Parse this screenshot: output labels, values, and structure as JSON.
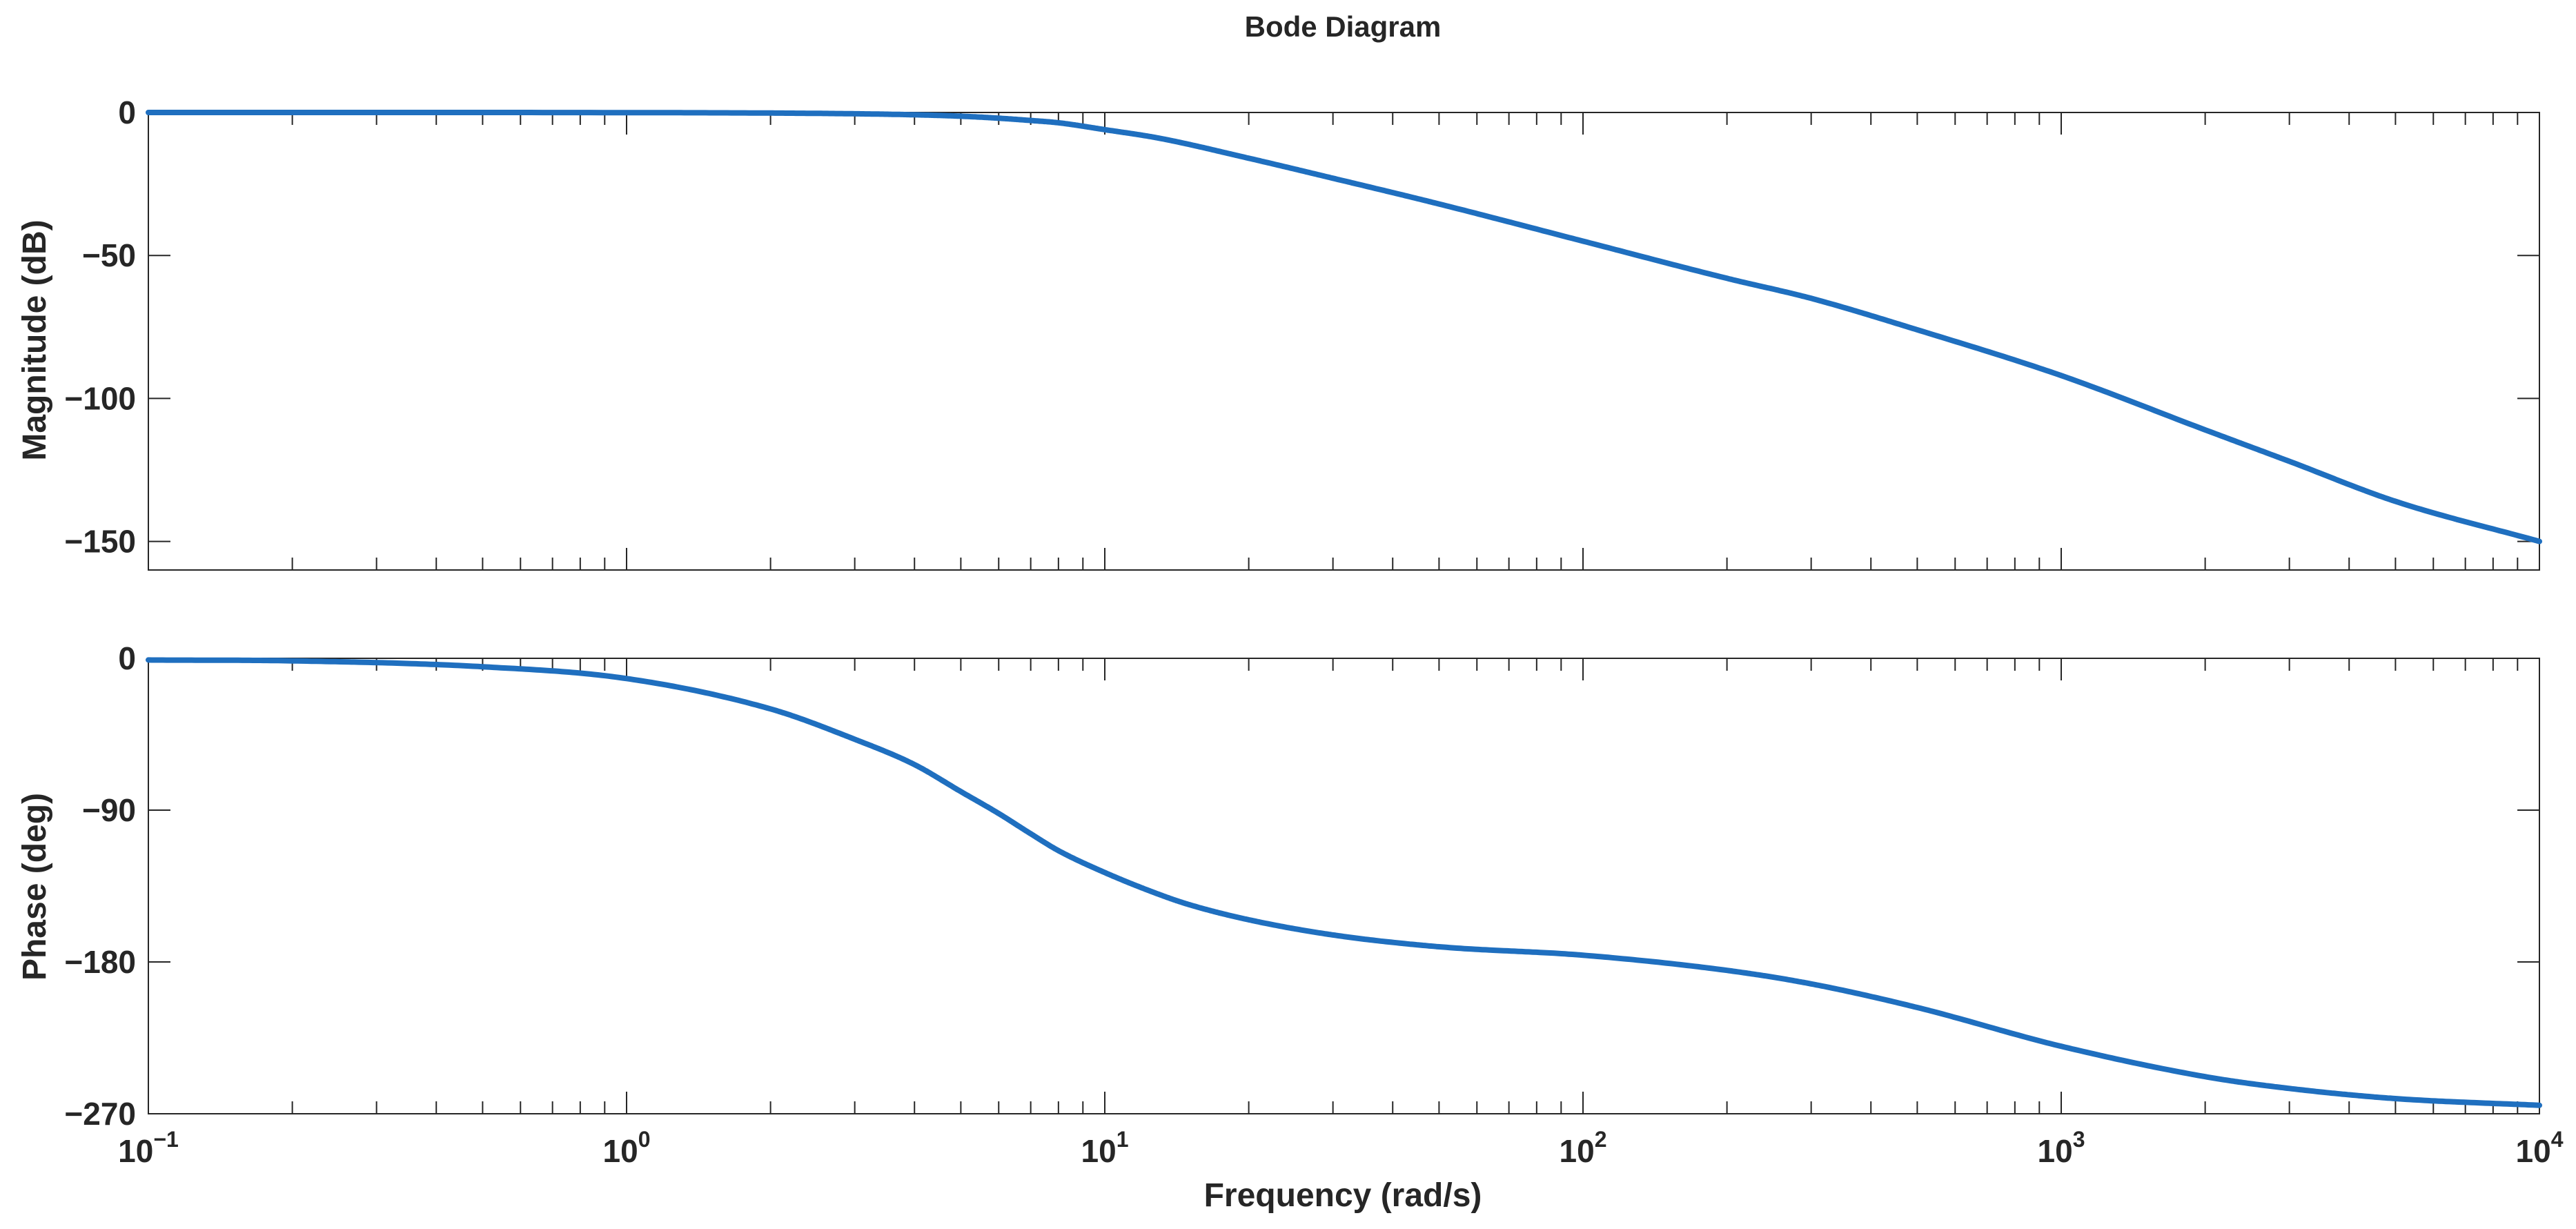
{
  "chart_data": {
    "type": "line",
    "title": "Bode Diagram",
    "xlabel": "Frequency (rad/s)",
    "x_scale": "log",
    "xlim": [
      0.1,
      10000
    ],
    "x_ticks": [
      {
        "base": "10",
        "exp": "−1",
        "value": 0.1
      },
      {
        "base": "10",
        "exp": "0",
        "value": 1
      },
      {
        "base": "10",
        "exp": "1",
        "value": 10
      },
      {
        "base": "10",
        "exp": "2",
        "value": 100
      },
      {
        "base": "10",
        "exp": "3",
        "value": 1000
      },
      {
        "base": "10",
        "exp": "4",
        "value": 10000
      }
    ],
    "line_color": "#1f6fbf",
    "grid": false,
    "subplots": [
      {
        "name": "magnitude",
        "ylabel": "Magnitude (dB)",
        "ylim": [
          -160,
          0
        ],
        "y_ticks": [
          {
            "label": "0",
            "value": 0
          },
          {
            "label": "−50",
            "value": -50
          },
          {
            "label": "−100",
            "value": -100
          },
          {
            "label": "−150",
            "value": -150
          }
        ],
        "series": [
          {
            "x": [
              0.1,
              1,
              2,
              3,
              4,
              5,
              6,
              7,
              8,
              10,
              13,
              20,
              30,
              50,
              100,
              200,
              300,
              500,
              1000,
              2000,
              3000,
              5000,
              10000
            ],
            "y": [
              0,
              -0.05,
              -0.2,
              -0.45,
              -0.8,
              -1.3,
              -2,
              -2.8,
              -3.6,
              -6,
              -9,
              -16,
              -23,
              -32,
              -45,
              -58,
              -65,
              -76,
              -92,
              -111,
              -122,
              -136,
              -150
            ]
          }
        ]
      },
      {
        "name": "phase",
        "ylabel": "Phase (deg)",
        "ylim": [
          -270,
          0
        ],
        "y_ticks": [
          {
            "label": "0",
            "value": 0
          },
          {
            "label": "−90",
            "value": -90
          },
          {
            "label": "−180",
            "value": -180
          },
          {
            "label": "−270",
            "value": -270
          }
        ],
        "series": [
          {
            "x": [
              0.1,
              0.2,
              0.5,
              1,
              2,
              3,
              4,
              5,
              6,
              7,
              8,
              10,
              13,
              15,
              20,
              30,
              50,
              100,
              200,
              300,
              500,
              1000,
              2000,
              3000,
              5000,
              10000
            ],
            "y": [
              -1,
              -1.5,
              -5,
              -12,
              -30,
              -48,
              -63,
              -79,
              -92,
              -104,
              -114,
              -127,
              -140,
              -146,
              -155,
              -164,
              -171,
              -176,
              -185,
              -193,
              -207,
              -230,
              -248,
              -255,
              -261,
              -265
            ]
          }
        ]
      }
    ]
  }
}
